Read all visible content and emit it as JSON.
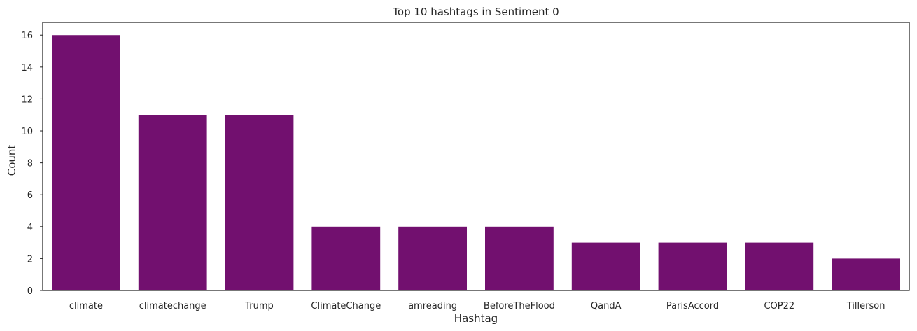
{
  "chart_data": {
    "type": "bar",
    "title": "Top 10 hashtags in Sentiment 0",
    "xlabel": "Hashtag",
    "ylabel": "Count",
    "categories": [
      "climate",
      "climatechange",
      "Trump",
      "ClimateChange",
      "amreading",
      "BeforeTheFlood",
      "QandA",
      "ParisAccord",
      "COP22",
      "Tillerson"
    ],
    "values": [
      16,
      11,
      11,
      4,
      4,
      4,
      3,
      3,
      3,
      2
    ],
    "ylim": [
      0,
      16.8
    ],
    "yticks": [
      0,
      2,
      4,
      6,
      8,
      10,
      12,
      14,
      16
    ],
    "bar_color": "#72106f",
    "grid": false,
    "legend": "none"
  }
}
